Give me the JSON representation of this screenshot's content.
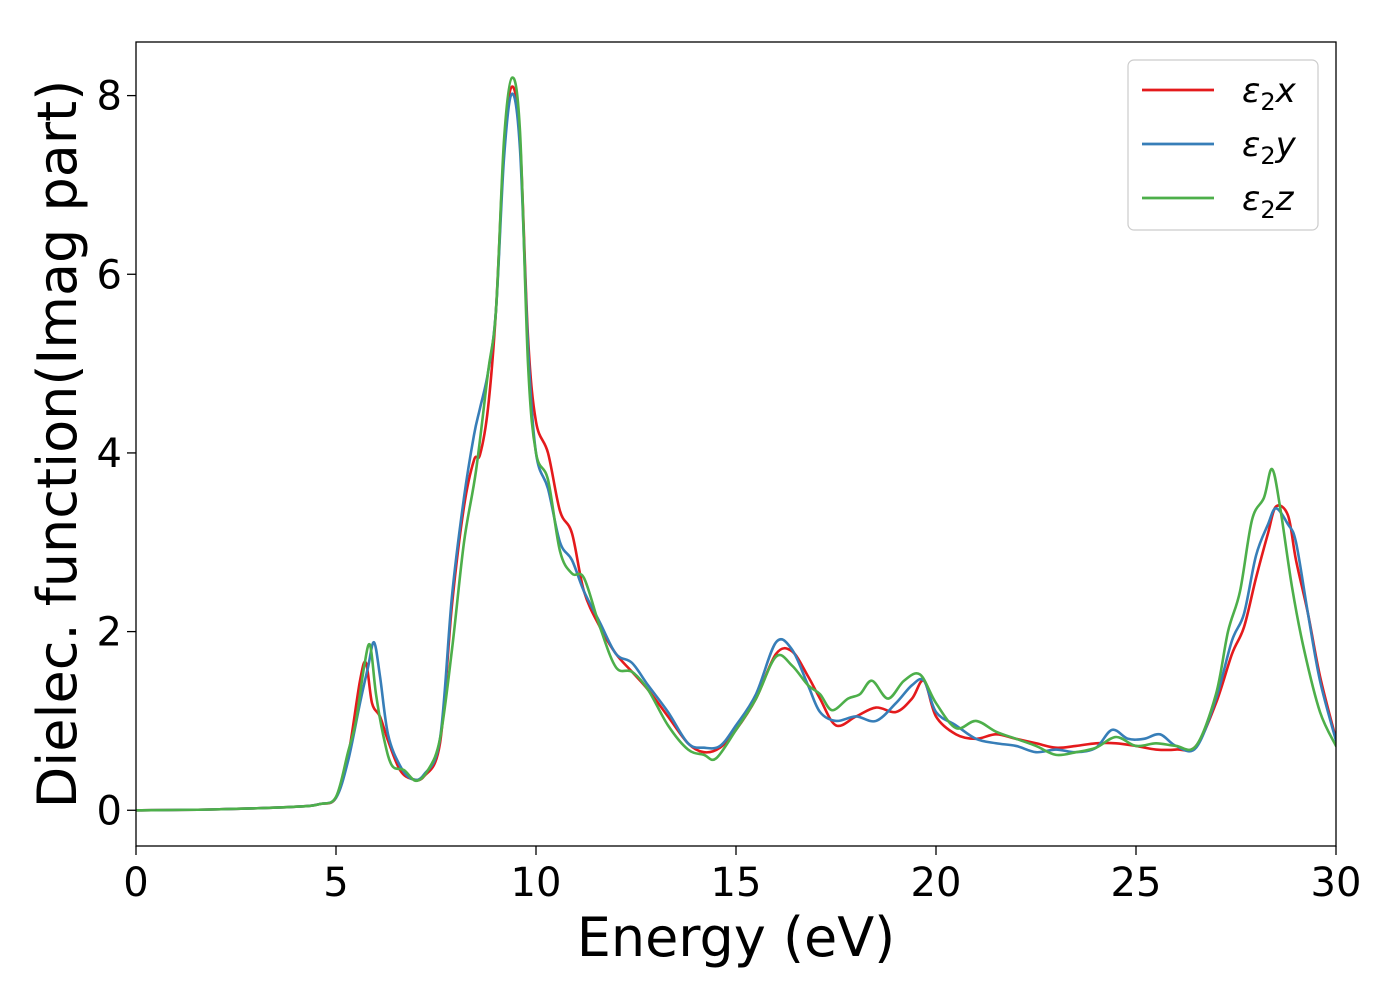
{
  "chart_data": {
    "type": "line",
    "xlabel": "Energy (eV)",
    "ylabel": "Dielec. function(Imag part)",
    "xlim": [
      0,
      30
    ],
    "ylim": [
      -0.4,
      8.6
    ],
    "xticks": [
      0,
      5,
      10,
      15,
      20,
      25,
      30
    ],
    "yticks": [
      0,
      2,
      4,
      6,
      8
    ],
    "grid": false,
    "legend_position": "top-right",
    "series": [
      {
        "name": "ε₂x",
        "legend_main": "ε",
        "legend_sub": "2",
        "legend_suffix": "x",
        "color": "#e41a1c",
        "x": [
          0,
          2,
          4,
          4.6,
          5.0,
          5.3,
          5.6,
          5.75,
          5.9,
          6.1,
          6.3,
          6.6,
          6.9,
          7.2,
          7.6,
          7.9,
          8.2,
          8.45,
          8.6,
          8.8,
          9.0,
          9.2,
          9.4,
          9.6,
          9.8,
          10.0,
          10.3,
          10.6,
          10.9,
          11.2,
          11.6,
          12.0,
          12.4,
          12.8,
          13.3,
          13.8,
          14.2,
          14.6,
          15.0,
          15.5,
          16.0,
          16.4,
          16.8,
          17.1,
          17.5,
          18.0,
          18.5,
          19.0,
          19.4,
          19.7,
          20.0,
          20.5,
          21.0,
          21.5,
          22.0,
          22.5,
          23.0,
          23.5,
          24.0,
          24.5,
          25.0,
          25.5,
          26.0,
          26.5,
          27.0,
          27.4,
          27.7,
          28.0,
          28.3,
          28.5,
          28.8,
          29.0,
          29.3,
          29.6,
          30.0
        ],
        "y": [
          0,
          0.01,
          0.04,
          0.07,
          0.14,
          0.6,
          1.45,
          1.65,
          1.2,
          1.05,
          0.78,
          0.45,
          0.35,
          0.38,
          0.75,
          2.3,
          3.4,
          3.92,
          3.98,
          4.5,
          5.6,
          7.4,
          8.1,
          7.5,
          5.3,
          4.35,
          4.0,
          3.35,
          3.1,
          2.45,
          2.05,
          1.75,
          1.55,
          1.35,
          1.05,
          0.75,
          0.65,
          0.7,
          0.9,
          1.25,
          1.75,
          1.78,
          1.5,
          1.25,
          0.95,
          1.05,
          1.15,
          1.1,
          1.25,
          1.45,
          1.05,
          0.85,
          0.8,
          0.85,
          0.8,
          0.75,
          0.7,
          0.72,
          0.75,
          0.75,
          0.72,
          0.68,
          0.68,
          0.72,
          1.2,
          1.75,
          2.05,
          2.6,
          3.1,
          3.4,
          3.3,
          2.8,
          2.2,
          1.5,
          0.8
        ]
      },
      {
        "name": "ε₂y",
        "legend_main": "ε",
        "legend_sub": "2",
        "legend_suffix": "y",
        "color": "#377eb8",
        "x": [
          0,
          2,
          4,
          4.6,
          5.0,
          5.3,
          5.6,
          5.8,
          5.95,
          6.1,
          6.3,
          6.6,
          6.9,
          7.2,
          7.6,
          7.9,
          8.2,
          8.45,
          8.6,
          8.8,
          9.0,
          9.2,
          9.4,
          9.6,
          9.8,
          10.0,
          10.3,
          10.6,
          10.9,
          11.2,
          11.6,
          12.0,
          12.4,
          12.8,
          13.3,
          13.8,
          14.2,
          14.6,
          15.0,
          15.5,
          16.0,
          16.4,
          16.8,
          17.1,
          17.5,
          18.0,
          18.5,
          19.0,
          19.4,
          19.7,
          20.0,
          20.5,
          21.0,
          21.5,
          22.0,
          22.5,
          23.0,
          23.5,
          24.0,
          24.4,
          24.8,
          25.2,
          25.6,
          26.0,
          26.5,
          27.0,
          27.4,
          27.7,
          28.0,
          28.3,
          28.5,
          28.8,
          29.0,
          29.3,
          29.6,
          30.0
        ],
        "y": [
          0,
          0.01,
          0.04,
          0.07,
          0.14,
          0.55,
          1.2,
          1.6,
          1.88,
          1.5,
          0.85,
          0.5,
          0.35,
          0.4,
          0.8,
          2.4,
          3.5,
          4.2,
          4.5,
          4.9,
          5.6,
          7.3,
          8.02,
          7.4,
          5.2,
          4.0,
          3.6,
          3.0,
          2.8,
          2.45,
          2.1,
          1.75,
          1.65,
          1.4,
          1.1,
          0.75,
          0.7,
          0.72,
          0.95,
          1.3,
          1.88,
          1.8,
          1.4,
          1.1,
          1.0,
          1.05,
          1.0,
          1.2,
          1.4,
          1.45,
          1.1,
          0.95,
          0.8,
          0.75,
          0.72,
          0.65,
          0.68,
          0.65,
          0.7,
          0.9,
          0.8,
          0.8,
          0.85,
          0.72,
          0.7,
          1.25,
          1.9,
          2.2,
          2.85,
          3.2,
          3.38,
          3.2,
          3.0,
          2.2,
          1.45,
          0.78
        ]
      },
      {
        "name": "ε₂z",
        "legend_main": "ε",
        "legend_sub": "2",
        "legend_suffix": "z",
        "color": "#4daf4a",
        "x": [
          0,
          2,
          4,
          4.6,
          5.0,
          5.3,
          5.5,
          5.7,
          5.85,
          6.0,
          6.2,
          6.4,
          6.7,
          7.0,
          7.3,
          7.6,
          7.9,
          8.2,
          8.5,
          8.8,
          9.0,
          9.2,
          9.4,
          9.6,
          9.8,
          10.0,
          10.3,
          10.6,
          10.9,
          11.2,
          11.6,
          12.0,
          12.4,
          12.8,
          13.3,
          13.8,
          14.2,
          14.5,
          15.0,
          15.5,
          16.0,
          16.4,
          16.8,
          17.1,
          17.4,
          17.8,
          18.1,
          18.4,
          18.8,
          19.2,
          19.6,
          20.0,
          20.5,
          21.0,
          21.5,
          22.0,
          22.5,
          23.0,
          23.5,
          24.0,
          24.5,
          25.0,
          25.5,
          26.0,
          26.5,
          27.0,
          27.3,
          27.6,
          27.9,
          28.2,
          28.4,
          28.6,
          28.9,
          29.2,
          29.6,
          30.0
        ],
        "y": [
          0,
          0.01,
          0.04,
          0.07,
          0.15,
          0.65,
          1.0,
          1.6,
          1.85,
          1.3,
          0.8,
          0.5,
          0.45,
          0.33,
          0.45,
          0.8,
          1.8,
          3.0,
          3.8,
          4.9,
          5.6,
          7.5,
          8.2,
          7.6,
          5.0,
          4.0,
          3.7,
          2.9,
          2.65,
          2.6,
          2.05,
          1.6,
          1.55,
          1.35,
          0.95,
          0.68,
          0.62,
          0.58,
          0.9,
          1.25,
          1.72,
          1.62,
          1.4,
          1.3,
          1.12,
          1.25,
          1.3,
          1.45,
          1.25,
          1.45,
          1.52,
          1.2,
          0.92,
          1.0,
          0.88,
          0.8,
          0.72,
          0.62,
          0.65,
          0.7,
          0.82,
          0.72,
          0.75,
          0.72,
          0.72,
          1.3,
          2.0,
          2.45,
          3.25,
          3.5,
          3.82,
          3.4,
          2.5,
          1.8,
          1.1,
          0.72
        ]
      }
    ]
  }
}
